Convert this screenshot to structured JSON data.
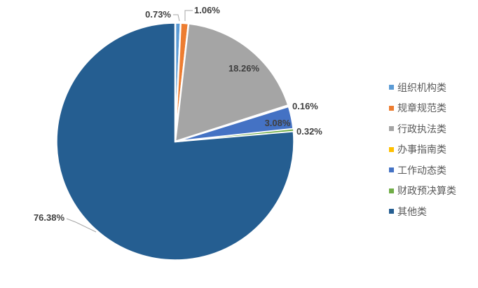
{
  "chart_data": {
    "type": "pie",
    "title": "",
    "legend_position": "right",
    "start_angle_deg": 0,
    "direction": "clockwise",
    "background": "#FFFFFF",
    "label_color": "#3F3F3F",
    "leader_line_color": "#A6A6A6",
    "legend_text_color": "#595959",
    "categories": [
      "组织机构类",
      "规章规范类",
      "行政执法类",
      "办事指南类",
      "工作动态类",
      "财政预决算类",
      "其他类"
    ],
    "series": [
      {
        "label": "组织机构类",
        "value": 0.73,
        "display": "0.73%",
        "color": "#5B9BD5"
      },
      {
        "label": "规章规范类",
        "value": 1.06,
        "display": "1.06%",
        "color": "#ED7D31"
      },
      {
        "label": "行政执法类",
        "value": 18.26,
        "display": "18.26%",
        "color": "#A5A5A5"
      },
      {
        "label": "办事指南类",
        "value": 0.16,
        "display": "0.16%",
        "color": "#FFC000"
      },
      {
        "label": "工作动态类",
        "value": 3.08,
        "display": "3.08%",
        "color": "#4472C4"
      },
      {
        "label": "财政预决算类",
        "value": 0.32,
        "display": "0.32%",
        "color": "#70AD47"
      },
      {
        "label": "其他类",
        "value": 76.38,
        "display": "76.38%",
        "color": "#255E91"
      }
    ]
  }
}
